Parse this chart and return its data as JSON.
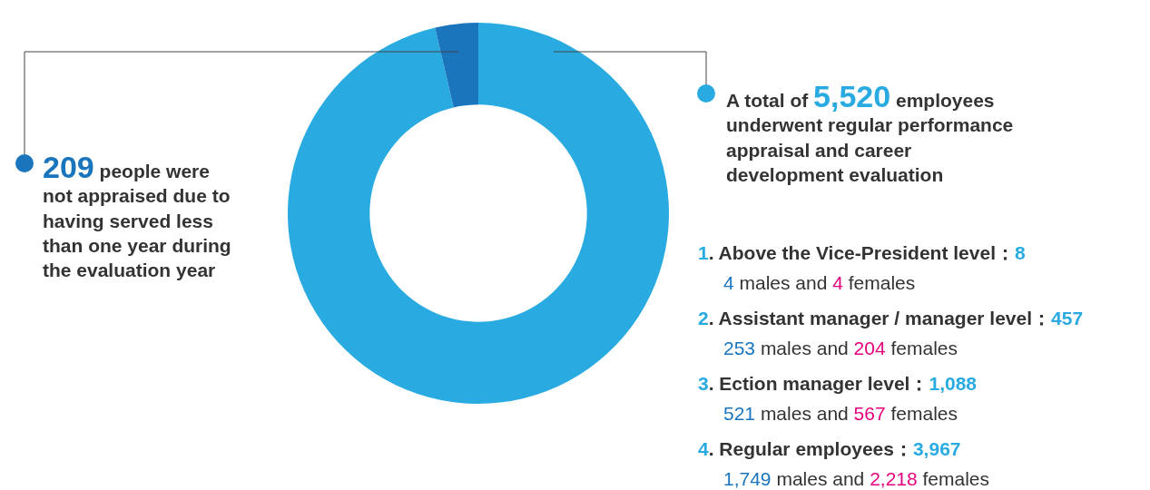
{
  "chart_data": {
    "type": "donut",
    "categories": [
      null,
      null
    ],
    "values": [
      96.35,
      3.65
    ],
    "colors": [
      "#29abe2",
      "#1a75bc"
    ],
    "annotations": [
      "209 people were not appraised due to having served less than one year during the evaluation year",
      "A total of 5,520 employees underwent regular performance appraisal and career development evaluation",
      "1. Above the Vice-President level：8",
      "4 males and 4 females",
      "2. Assistant manager / manager level：457",
      "253 males and 204 females",
      "3. Ection manager level：1,088",
      "521 males and 567 females",
      "4. Regular employees：3,967",
      "1,749 males and 2,218 females"
    ]
  }
}
